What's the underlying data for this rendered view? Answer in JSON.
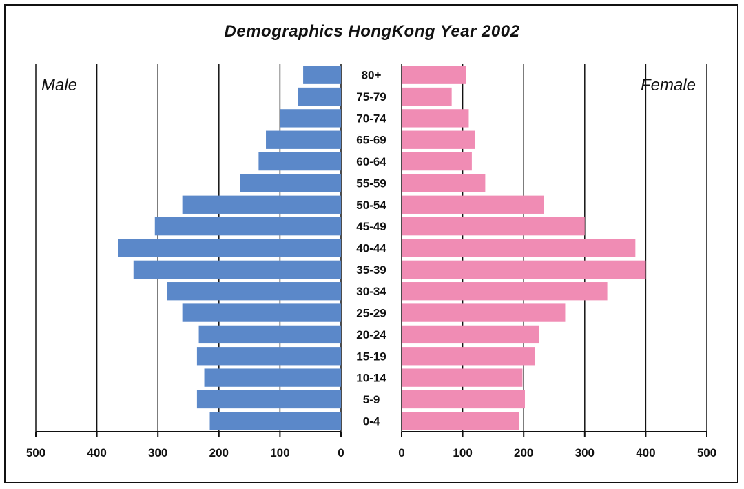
{
  "chart_data": {
    "type": "bar",
    "orientation": "horizontal",
    "title": "Demographics HongKong Year 2002",
    "categories": [
      "80+",
      "75-79",
      "70-74",
      "65-69",
      "60-64",
      "55-59",
      "50-54",
      "45-49",
      "40-44",
      "35-39",
      "30-34",
      "25-29",
      "20-24",
      "15-19",
      "10-14",
      "5-9",
      "0-4"
    ],
    "series": [
      {
        "name": "Male",
        "color": "#5b88c9",
        "side": "left",
        "values": [
          62,
          70,
          100,
          123,
          135,
          165,
          260,
          305,
          365,
          340,
          285,
          260,
          233,
          236,
          224,
          236,
          215
        ]
      },
      {
        "name": "Female",
        "color": "#f08cb4",
        "side": "right",
        "values": [
          106,
          82,
          110,
          120,
          115,
          137,
          233,
          300,
          383,
          400,
          337,
          268,
          225,
          218,
          198,
          202,
          193
        ]
      }
    ],
    "xlim": [
      0,
      500
    ],
    "left_ticks": [
      "500",
      "400",
      "300",
      "200",
      "100",
      "0"
    ],
    "right_ticks": [
      "0",
      "100",
      "200",
      "300",
      "400",
      "500"
    ],
    "grid": true,
    "legend": "in-plot labels: top-left Male, top-right Female"
  }
}
